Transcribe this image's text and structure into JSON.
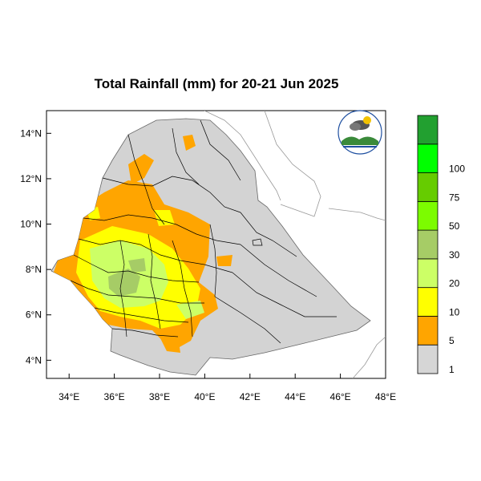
{
  "title": "Total Rainfall (mm) for 20-21 Jun 2025",
  "map": {
    "lon_range": [
      33,
      48
    ],
    "lat_range": [
      3.2,
      15
    ],
    "x_ticks": [
      {
        "lon": 34,
        "label": "34°E"
      },
      {
        "lon": 36,
        "label": "36°E"
      },
      {
        "lon": 38,
        "label": "38°E"
      },
      {
        "lon": 40,
        "label": "40°E"
      },
      {
        "lon": 42,
        "label": "42°E"
      },
      {
        "lon": 44,
        "label": "44°E"
      },
      {
        "lon": 46,
        "label": "46°E"
      },
      {
        "lon": 48,
        "label": "48°E"
      }
    ],
    "y_ticks": [
      {
        "lat": 4,
        "label": "4°N"
      },
      {
        "lat": 6,
        "label": "6°N"
      },
      {
        "lat": 8,
        "label": "8°N"
      },
      {
        "lat": 10,
        "label": "10°N"
      },
      {
        "lat": 12,
        "label": "12°N"
      },
      {
        "lat": 14,
        "label": "14°N"
      }
    ],
    "land_color": "#d3d3d3"
  },
  "legend": {
    "bins": [
      {
        "color": "#d6d6d6",
        "label": "1"
      },
      {
        "color": "#ffa500",
        "label": "5"
      },
      {
        "color": "#ffff00",
        "label": "10"
      },
      {
        "color": "#ccff66",
        "label": "20"
      },
      {
        "color": "#a6cc66",
        "label": "30"
      },
      {
        "color": "#7cfc00",
        "label": "50"
      },
      {
        "color": "#66cc00",
        "label": "75"
      },
      {
        "color": "#00ff00",
        "label": "100"
      },
      {
        "color": "#22a030",
        "label": ""
      }
    ]
  }
}
